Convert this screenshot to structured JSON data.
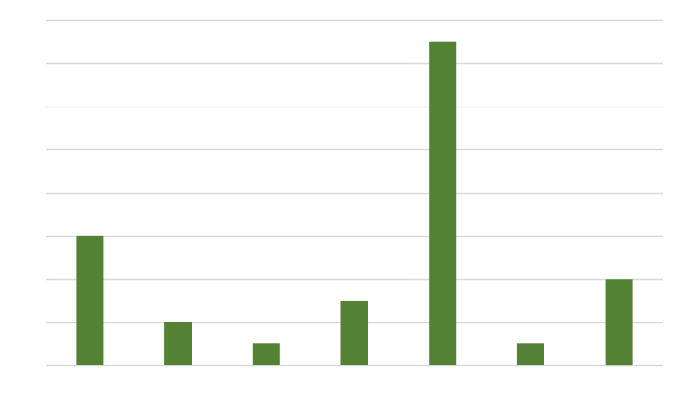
{
  "chart_data": {
    "type": "bar",
    "title": "",
    "xlabel": "",
    "ylabel": "",
    "ylim": [
      0,
      8
    ],
    "grid": true,
    "legend": "none",
    "categories": [
      "",
      "",
      "",
      "",
      "",
      "",
      ""
    ],
    "series": [
      {
        "color": "#548235",
        "values": [
          3,
          1,
          0.5,
          1.5,
          7.5,
          0.5,
          2
        ]
      }
    ],
    "gridline_color": "#d9d9d9"
  }
}
